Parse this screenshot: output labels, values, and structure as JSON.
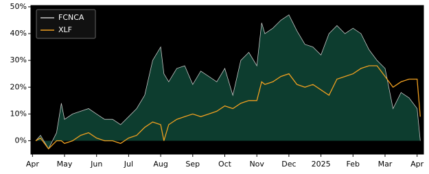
{
  "chart_data": {
    "type": "line",
    "x": [
      0.1,
      0.25,
      0.5,
      0.75,
      0.9,
      1,
      1.25,
      1.5,
      1.75,
      2,
      2.25,
      2.5,
      2.75,
      3,
      3.25,
      3.5,
      3.75,
      4,
      4.1,
      4.25,
      4.5,
      4.75,
      5,
      5.25,
      5.5,
      5.75,
      6,
      6.25,
      6.5,
      6.75,
      7,
      7.15,
      7.25,
      7.5,
      7.75,
      8,
      8.25,
      8.5,
      8.75,
      9,
      9.25,
      9.5,
      9.75,
      10,
      10.25,
      10.5,
      10.75,
      11,
      11.25,
      11.5,
      11.75,
      12,
      12.1
    ],
    "series": [
      {
        "name": "FCNCA",
        "color": "#c8c8c8",
        "fill": "#0d3d2f",
        "values": [
          0,
          2,
          -3,
          3,
          14,
          8,
          10,
          11,
          12,
          10,
          8,
          8,
          6,
          9,
          12,
          17,
          30,
          35,
          25,
          22,
          27,
          28,
          21,
          26,
          24,
          22,
          27,
          17,
          30,
          33,
          28,
          44,
          40,
          42,
          45,
          47,
          41,
          36,
          35,
          32,
          40,
          43,
          40,
          42,
          40,
          34,
          30,
          27,
          12,
          18,
          16,
          12,
          0
        ]
      },
      {
        "name": "XLF",
        "color": "#f0a020",
        "values": [
          0,
          1,
          -3,
          0,
          0,
          -1,
          0,
          2,
          3,
          1,
          0,
          0,
          -1,
          1,
          2,
          5,
          7,
          6,
          0,
          6,
          8,
          9,
          10,
          9,
          10,
          11,
          13,
          12,
          14,
          15,
          15,
          22,
          21,
          22,
          24,
          25,
          21,
          20,
          21,
          19,
          17,
          23,
          24,
          25,
          27,
          28,
          28,
          24,
          20,
          22,
          23,
          23,
          9
        ]
      }
    ],
    "xlim": [
      -0.05,
      12.2
    ],
    "xticks": [
      {
        "value": 0,
        "label": "Apr"
      },
      {
        "value": 1,
        "label": "May"
      },
      {
        "value": 2,
        "label": "Jun"
      },
      {
        "value": 3,
        "label": "Jul"
      },
      {
        "value": 4,
        "label": "Aug"
      },
      {
        "value": 5,
        "label": "Sep"
      },
      {
        "value": 6,
        "label": "Oct"
      },
      {
        "value": 7,
        "label": "Nov"
      },
      {
        "value": 8,
        "label": "Dec"
      },
      {
        "value": 9,
        "label": "2025"
      },
      {
        "value": 10,
        "label": "Feb"
      },
      {
        "value": 11,
        "label": "Mar"
      },
      {
        "value": 12,
        "label": "Apr"
      }
    ],
    "ylim": [
      -5,
      50.5
    ],
    "yticks": [
      {
        "value": 0,
        "label": "0%"
      },
      {
        "value": 10,
        "label": "10%"
      },
      {
        "value": 20,
        "label": "20%"
      },
      {
        "value": 30,
        "label": "30%"
      },
      {
        "value": 40,
        "label": "40%"
      },
      {
        "value": 50,
        "label": "50%"
      }
    ],
    "legend": "upper left",
    "background": "#000000"
  }
}
